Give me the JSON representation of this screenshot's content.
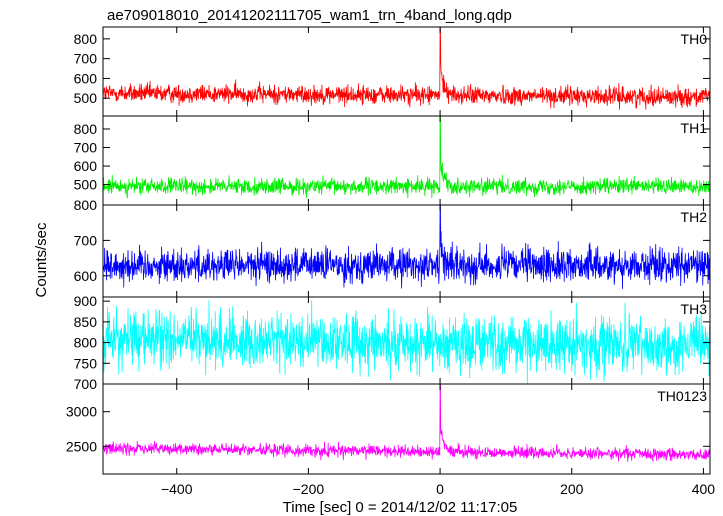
{
  "title": "ae709018010_20141202111705_wam1_trn_4band_long.qdp",
  "xlabel": "Time [sec] 0 = 2014/12/02 11:17:05",
  "ylabel": "Counts/sec",
  "chart_data": {
    "type": "line",
    "x_range": [
      -512,
      410
    ],
    "x_ticks": [
      -400,
      -200,
      0,
      200,
      400
    ],
    "x_tick_labels": [
      "−400",
      "−200",
      "0",
      "200",
      "400"
    ],
    "panels": [
      {
        "name": "TH0",
        "color": "#ff0000",
        "ylim": [
          410,
          860
        ],
        "y_ticks": [
          500,
          600,
          700,
          800
        ],
        "y_tick_labels": [
          "500",
          "600",
          "700",
          "800"
        ],
        "baseline": 515,
        "noise": 24,
        "trend": -0.02,
        "burst_peak": 860,
        "burst_decay": 6
      },
      {
        "name": "TH1",
        "color": "#00ee00",
        "ylim": [
          390,
          870
        ],
        "y_ticks": [
          500,
          600,
          700,
          800
        ],
        "y_tick_labels": [
          "500",
          "600",
          "700",
          "800"
        ],
        "baseline": 490,
        "noise": 22,
        "trend": 0,
        "burst_peak": 870,
        "burst_decay": 6
      },
      {
        "name": "TH2",
        "color": "#0000ff",
        "ylim": [
          540,
          800
        ],
        "y_ticks": [
          600,
          700,
          800
        ],
        "y_tick_labels": [
          "600",
          "700",
          "800"
        ],
        "baseline": 630,
        "noise": 24,
        "trend": 0,
        "burst_peak": 800,
        "burst_decay": 4
      },
      {
        "name": "TH3",
        "color": "#00ffff",
        "ylim": [
          700,
          910
        ],
        "y_ticks": [
          700,
          750,
          800,
          850,
          900
        ],
        "y_tick_labels": [
          "700",
          "750",
          "800",
          "850",
          "900"
        ],
        "baseline": 800,
        "noise": 34,
        "trend": -0.02,
        "burst_peak": 820,
        "burst_decay": 3
      },
      {
        "name": "TH0123",
        "color": "#ff00ff",
        "ylim": [
          2100,
          3400
        ],
        "y_ticks": [
          2500,
          3000
        ],
        "y_tick_labels": [
          "2500",
          "3000"
        ],
        "baseline": 2420,
        "noise": 45,
        "trend": -0.1,
        "burst_peak": 3400,
        "burst_decay": 6
      }
    ]
  }
}
